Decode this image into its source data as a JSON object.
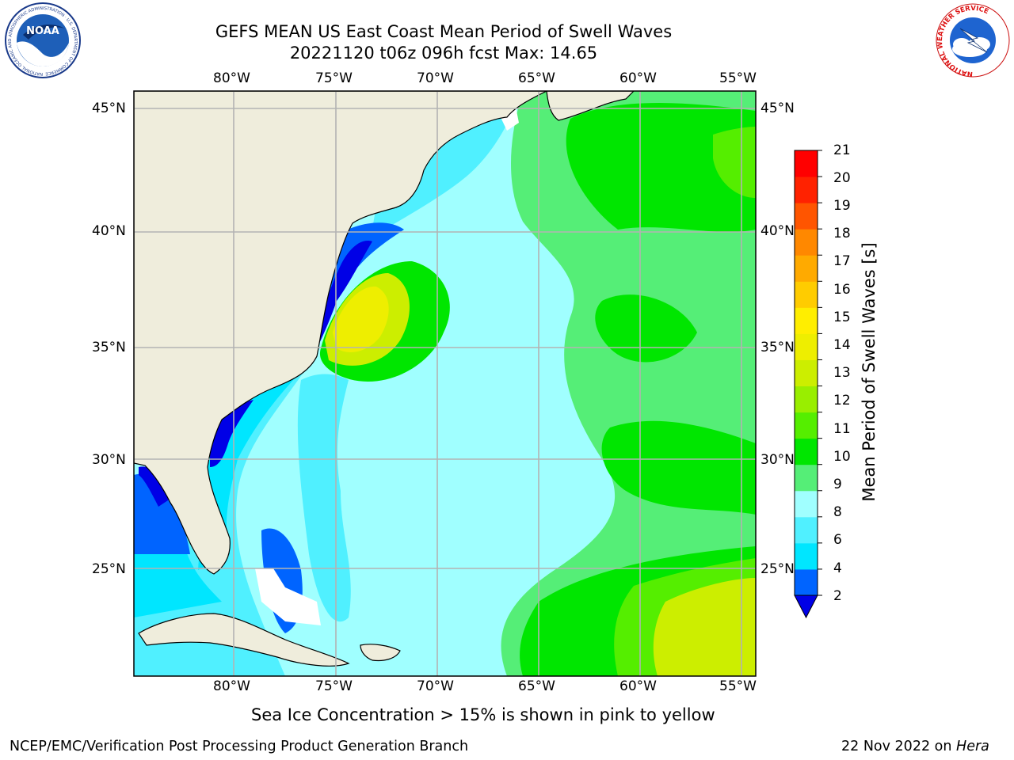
{
  "title": {
    "line1": "GEFS MEAN US East Coast Mean Period of Swell Waves",
    "line2": "20221120 t06z 096h fcst   Max: 14.65"
  },
  "axes": {
    "lon_labels": [
      "80°W",
      "75°W",
      "70°W",
      "65°W",
      "60°W",
      "55°W"
    ],
    "lat_labels": [
      "45°N",
      "40°N",
      "35°N",
      "30°N",
      "25°N"
    ],
    "lon_range": [
      -85,
      -54.5
    ],
    "lat_range": [
      20.5,
      46
    ]
  },
  "colorbar": {
    "title": "Mean Period of Swell Waves [s]",
    "ticks": [
      "21",
      "20",
      "19",
      "18",
      "17",
      "16",
      "15",
      "14",
      "13",
      "12",
      "11",
      "10",
      "9",
      "8",
      "6",
      "4",
      "2"
    ],
    "colors": [
      "#0000e6",
      "#0064ff",
      "#00e6ff",
      "#50f0ff",
      "#a0ffff",
      "#55ee77",
      "#00e600",
      "#55ee00",
      "#99ee00",
      "#ccee00",
      "#eeee00",
      "#ffee00",
      "#ffcc00",
      "#ffaa00",
      "#ff8800",
      "#ff5500",
      "#ff2200",
      "#ff0000"
    ]
  },
  "note": "Sea Ice Concentration > 15% is shown in pink to yellow",
  "footer": {
    "left": "NCEP/EMC/Verification Post Processing Product Generation Branch",
    "date": "22 Nov 2022 on",
    "machine": "Hera"
  },
  "logos": {
    "noaa_text": "NOAA",
    "noaa_ring": "NATIONAL OCEANIC AND ATMOSPHERIC ADMINISTRATION · U.S. DEPARTMENT OF COMMERCE",
    "nws_ring": "NATIONAL WEATHER SERVICE"
  }
}
